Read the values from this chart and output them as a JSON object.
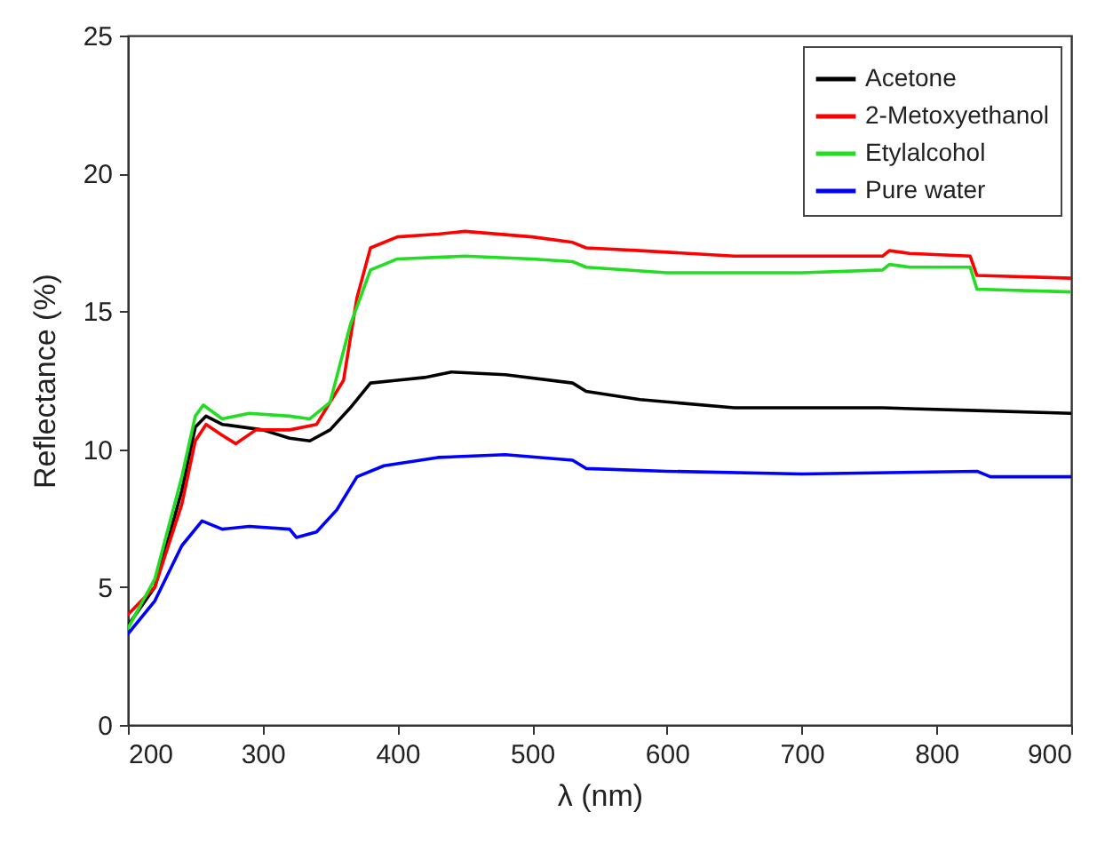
{
  "chart_data": {
    "type": "line",
    "xlabel": "λ (nm)",
    "ylabel": "Reflectance (%)",
    "xlim": [
      200,
      900
    ],
    "ylim": [
      0,
      25
    ],
    "xticks": [
      200,
      300,
      400,
      500,
      600,
      700,
      800,
      900
    ],
    "yticks": [
      0,
      5,
      10,
      15,
      20,
      25
    ],
    "grid": false,
    "legend": "top right",
    "marker": "none",
    "line_style": "solid",
    "series": [
      {
        "name": "Acetone",
        "color": "#000000",
        "x": [
          200,
          220,
          240,
          250,
          258,
          270,
          300,
          320,
          335,
          350,
          365,
          380,
          400,
          420,
          440,
          480,
          530,
          540,
          580,
          650,
          700,
          760,
          830,
          900
        ],
        "values": [
          3.6,
          5,
          8.5,
          10.8,
          11.2,
          10.9,
          10.7,
          10.4,
          10.3,
          10.7,
          11.5,
          12.4,
          12.5,
          12.6,
          12.8,
          12.7,
          12.4,
          12.1,
          11.8,
          11.5,
          11.5,
          11.5,
          11.4,
          11.3
        ]
      },
      {
        "name": "2-Metoxyethanol",
        "color": "#ff0000",
        "x": [
          200,
          220,
          240,
          250,
          258,
          270,
          280,
          295,
          320,
          340,
          360,
          370,
          380,
          400,
          430,
          450,
          500,
          530,
          540,
          580,
          650,
          700,
          760,
          765,
          780,
          825,
          830,
          900
        ],
        "values": [
          4,
          5,
          8,
          10.3,
          10.9,
          10.5,
          10.2,
          10.7,
          10.7,
          10.9,
          12.5,
          15.5,
          17.3,
          17.7,
          17.8,
          17.9,
          17.7,
          17.5,
          17.3,
          17.2,
          17,
          17,
          17,
          17.2,
          17.1,
          17,
          16.3,
          16.2
        ]
      },
      {
        "name": "Etylalcohol",
        "color": "#22dd22",
        "x": [
          200,
          220,
          240,
          250,
          256,
          270,
          290,
          320,
          335,
          350,
          365,
          380,
          400,
          450,
          500,
          530,
          540,
          600,
          700,
          760,
          765,
          780,
          825,
          830,
          900
        ],
        "values": [
          3.5,
          5.3,
          9,
          11.2,
          11.6,
          11.1,
          11.3,
          11.2,
          11.1,
          11.7,
          14.5,
          16.5,
          16.9,
          17,
          16.9,
          16.8,
          16.6,
          16.4,
          16.4,
          16.5,
          16.7,
          16.6,
          16.6,
          15.8,
          15.7
        ]
      },
      {
        "name": "Pure water",
        "color": "#0000ff",
        "x": [
          200,
          220,
          240,
          255,
          270,
          290,
          320,
          325,
          340,
          355,
          370,
          390,
          430,
          480,
          530,
          540,
          600,
          700,
          830,
          840,
          900
        ],
        "values": [
          3.3,
          4.5,
          6.5,
          7.4,
          7.1,
          7.2,
          7.1,
          6.8,
          7,
          7.8,
          9,
          9.4,
          9.7,
          9.8,
          9.6,
          9.3,
          9.2,
          9.1,
          9.2,
          9,
          9
        ]
      }
    ]
  }
}
